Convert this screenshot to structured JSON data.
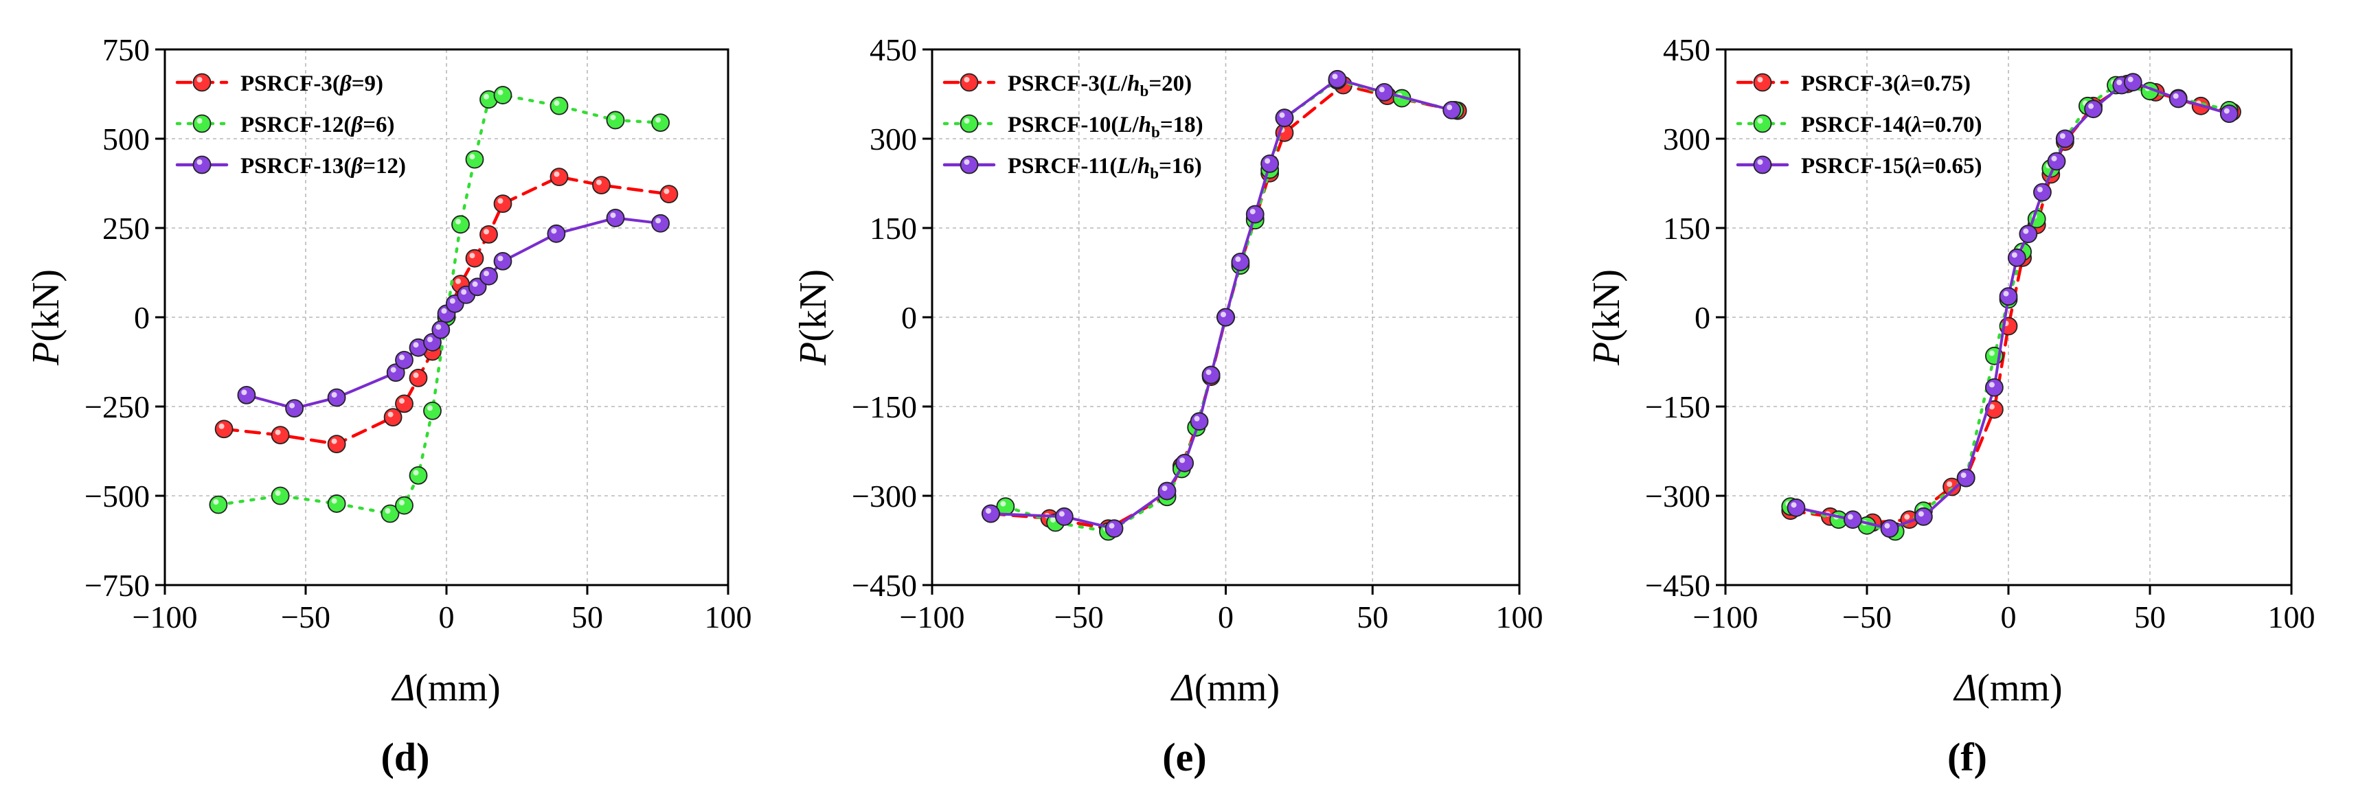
{
  "chart_data": [
    {
      "type": "line",
      "panel_label": "d",
      "xlabel": {
        "symbol": "Δ",
        "unit": "(mm)"
      },
      "ylabel": {
        "symbol": "P",
        "unit": "(kN)"
      },
      "xlim": [
        -100,
        100
      ],
      "ylim": [
        -750,
        750
      ],
      "xticks": [
        -100,
        -50,
        0,
        50,
        100
      ],
      "yticks": [
        -750,
        -500,
        -250,
        0,
        250,
        500,
        750
      ],
      "tick_labels_x": [
        "−100",
        "−50",
        "0",
        "50",
        "100"
      ],
      "tick_labels_y": [
        "−750",
        "−500",
        "−250",
        "0",
        "250",
        "500",
        "750"
      ],
      "grid": true,
      "legend_position": "top-left",
      "series": [
        {
          "name": "PSRCF-3(β=9)",
          "legend": {
            "base": "PSRCF-3(",
            "italic": "β",
            "rest": "=9)"
          },
          "color": "#ff0000",
          "line_style": "dashed",
          "marker_color": "#ff3333",
          "x": [
            -79,
            -59,
            -39,
            -19,
            -15,
            -10,
            -5,
            0,
            5,
            10,
            15,
            20,
            40,
            55,
            79
          ],
          "y": [
            -313,
            -330,
            -355,
            -280,
            -242,
            -170,
            -96,
            0,
            93,
            165,
            232,
            318,
            393,
            370,
            345
          ]
        },
        {
          "name": "PSRCF-12(β=6)",
          "legend": {
            "base": "PSRCF-12(",
            "italic": "β",
            "rest": "=6)"
          },
          "color": "#33dd33",
          "line_style": "dotted",
          "marker_color": "#44ee44",
          "x": [
            -81,
            -59,
            -39,
            -20,
            -15,
            -10,
            -5,
            0,
            5,
            10,
            15,
            20,
            40,
            60,
            76
          ],
          "y": [
            -525,
            -500,
            -522,
            -550,
            -527,
            -443,
            -262,
            0,
            260,
            442,
            610,
            622,
            592,
            552,
            545
          ]
        },
        {
          "name": "PSRCF-13(β=12)",
          "legend": {
            "base": "PSRCF-13(",
            "italic": "β",
            "rest": "=12)"
          },
          "color": "#7a2ccf",
          "line_style": "solid",
          "marker_color": "#8a44e0",
          "x": [
            -71,
            -54,
            -39,
            -18,
            -15,
            -10,
            -5,
            -2,
            0,
            3,
            7,
            11,
            15,
            20,
            39,
            60,
            76
          ],
          "y": [
            -218,
            -255,
            -225,
            -155,
            -120,
            -85,
            -70,
            -35,
            10,
            38,
            63,
            85,
            115,
            157,
            234,
            278,
            263
          ]
        }
      ]
    },
    {
      "type": "line",
      "panel_label": "e",
      "xlabel": {
        "symbol": "Δ",
        "unit": "(mm)"
      },
      "ylabel": {
        "symbol": "P",
        "unit": "(kN)"
      },
      "xlim": [
        -100,
        100
      ],
      "ylim": [
        -450,
        450
      ],
      "xticks": [
        -100,
        -50,
        0,
        50,
        100
      ],
      "yticks": [
        -450,
        -300,
        -150,
        0,
        150,
        300,
        450
      ],
      "tick_labels_x": [
        "−100",
        "−50",
        "0",
        "50",
        "100"
      ],
      "tick_labels_y": [
        "−450",
        "−300",
        "−150",
        "0",
        "150",
        "300",
        "450"
      ],
      "grid": true,
      "legend_position": "top-left",
      "series": [
        {
          "name": "PSRCF-3(L/hb=20)",
          "legend": {
            "base": "PSRCF-3(",
            "italic": "L",
            "slash": "/",
            "italic2": "h",
            "sub": "b",
            "rest": "=20)"
          },
          "color": "#ff0000",
          "line_style": "dashed",
          "marker_color": "#ff3333",
          "x": [
            -80,
            -60,
            -40,
            -20,
            -15,
            -10,
            -5,
            0,
            5,
            10,
            15,
            20,
            40,
            55,
            79
          ],
          "y": [
            -330,
            -338,
            -355,
            -300,
            -250,
            -185,
            -100,
            0,
            90,
            165,
            242,
            310,
            390,
            372,
            347
          ]
        },
        {
          "name": "PSRCF-10(L/hb=18)",
          "legend": {
            "base": "PSRCF-10(",
            "italic": "L",
            "slash": "/",
            "italic2": "h",
            "sub": "b",
            "rest": "=18)"
          },
          "color": "#33dd33",
          "line_style": "dotted",
          "marker_color": "#44ee44",
          "x": [
            -75,
            -58,
            -40,
            -20,
            -15,
            -10,
            -5,
            0,
            5,
            10,
            15,
            20,
            38,
            60,
            78
          ],
          "y": [
            -318,
            -345,
            -360,
            -302,
            -255,
            -185,
            -97,
            0,
            87,
            163,
            248,
            335,
            398,
            368,
            348
          ]
        },
        {
          "name": "PSRCF-11(L/hb=16)",
          "legend": {
            "base": "PSRCF-11(",
            "italic": "L",
            "slash": "/",
            "italic2": "h",
            "sub": "b",
            "rest": "=16)"
          },
          "color": "#7a2ccf",
          "line_style": "solid",
          "marker_color": "#8a44e0",
          "x": [
            -80,
            -55,
            -38,
            -20,
            -14,
            -9,
            -5,
            0,
            5,
            10,
            15,
            20,
            38,
            54,
            77
          ],
          "y": [
            -330,
            -335,
            -355,
            -292,
            -245,
            -175,
            -97,
            0,
            93,
            173,
            258,
            335,
            400,
            378,
            348
          ]
        }
      ]
    },
    {
      "type": "line",
      "panel_label": "f",
      "xlabel": {
        "symbol": "Δ",
        "unit": "(mm)"
      },
      "ylabel": {
        "symbol": "P",
        "unit": "(kN)"
      },
      "xlim": [
        -100,
        100
      ],
      "ylim": [
        -450,
        450
      ],
      "xticks": [
        -100,
        -50,
        0,
        50,
        100
      ],
      "yticks": [
        -450,
        -300,
        -150,
        0,
        150,
        300,
        450
      ],
      "tick_labels_x": [
        "−100",
        "−50",
        "0",
        "50",
        "100"
      ],
      "tick_labels_y": [
        "−450",
        "−300",
        "−150",
        "0",
        "150",
        "300",
        "450"
      ],
      "grid": true,
      "legend_position": "top-left",
      "series": [
        {
          "name": "PSRCF-3(λ=0.75)",
          "legend": {
            "base": "PSRCF-3(",
            "italic": "λ",
            "rest": "=0.75)"
          },
          "color": "#ff0000",
          "line_style": "dashed",
          "marker_color": "#ff3333",
          "x": [
            -77,
            -63,
            -48,
            -35,
            -20,
            -15,
            -5,
            0,
            5,
            10,
            15,
            20,
            30,
            42,
            52,
            68,
            79
          ],
          "y": [
            -325,
            -335,
            -345,
            -340,
            -285,
            -270,
            -155,
            -15,
            100,
            155,
            240,
            295,
            355,
            392,
            378,
            355,
            345
          ]
        },
        {
          "name": "PSRCF-14(λ=0.70)",
          "legend": {
            "base": "PSRCF-14(",
            "italic": "λ",
            "rest": "=0.70)"
          },
          "color": "#33dd33",
          "line_style": "dotted",
          "marker_color": "#44ee44",
          "x": [
            -77,
            -60,
            -50,
            -40,
            -30,
            -15,
            -5,
            0,
            5,
            10,
            15,
            20,
            28,
            38,
            50,
            60,
            78
          ],
          "y": [
            -318,
            -340,
            -350,
            -360,
            -325,
            -270,
            -65,
            30,
            110,
            165,
            250,
            300,
            355,
            390,
            380,
            368,
            348
          ]
        },
        {
          "name": "PSRCF-15(λ=0.65)",
          "legend": {
            "base": "PSRCF-15(",
            "italic": "λ",
            "rest": "=0.65)"
          },
          "color": "#7a2ccf",
          "line_style": "solid",
          "marker_color": "#8a44e0",
          "x": [
            -75,
            -55,
            -42,
            -30,
            -15,
            -5,
            0,
            3,
            7,
            12,
            17,
            20,
            30,
            40,
            44,
            60,
            78
          ],
          "y": [
            -320,
            -340,
            -355,
            -335,
            -270,
            -118,
            35,
            100,
            140,
            210,
            262,
            300,
            350,
            390,
            395,
            367,
            342
          ]
        }
      ]
    }
  ]
}
